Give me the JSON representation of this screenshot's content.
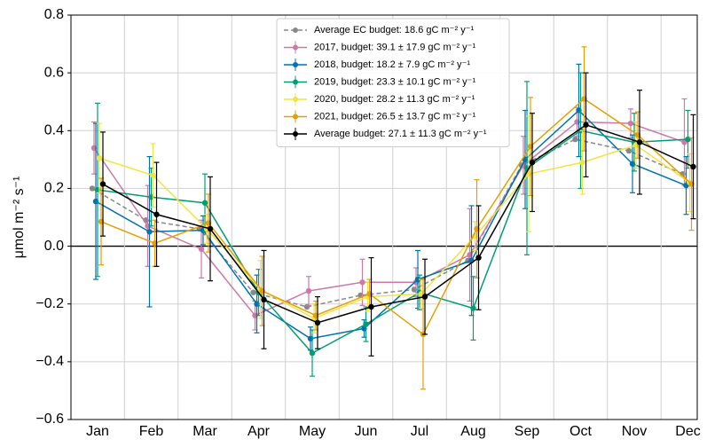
{
  "chart_data": {
    "type": "line",
    "ylabel": "μmol m⁻² s⁻¹",
    "categories": [
      "Jan",
      "Feb",
      "Mar",
      "Apr",
      "May",
      "Jun",
      "Jul",
      "Aug",
      "Sep",
      "Oct",
      "Nov",
      "Dec"
    ],
    "ylim": [
      -0.6,
      0.8
    ],
    "yticks": [
      {
        "value": -0.6,
        "label": "−0.6"
      },
      {
        "value": -0.4,
        "label": "−0.4"
      },
      {
        "value": -0.2,
        "label": "−0.2"
      },
      {
        "value": 0,
        "label": "0.0"
      },
      0.2,
      0.4,
      0.6,
      0.8
    ],
    "grid": true,
    "legend": "upper center",
    "series": [
      {
        "name": "Average EC budget: 18.6 gC m⁻² y⁻¹",
        "color": "#888888",
        "dashed": true,
        "values": [
          0.2,
          0.09,
          0.06,
          -0.16,
          -0.21,
          -0.17,
          -0.15,
          -0.05,
          0.28,
          0.37,
          0.33,
          0.25
        ]
      },
      {
        "name": "2017, budget: 39.1 ± 17.9 gC m⁻² y⁻¹",
        "color": "#cc79a7",
        "values": [
          0.34,
          0.07,
          -0.01,
          -0.24,
          -0.155,
          -0.125,
          -0.125,
          -0.03,
          0.28,
          0.43,
          0.425,
          0.36
        ],
        "errors": [
          0.09,
          0.14,
          0.1,
          0.05,
          0.05,
          0.08,
          0.05,
          0.16,
          0.1,
          0.05,
          0.05,
          0.15
        ]
      },
      {
        "name": "2018, budget: 18.2 ± 7.9 gC m⁻² y⁻¹",
        "color": "#0072b2",
        "values": [
          0.155,
          0.05,
          0.055,
          -0.2,
          -0.32,
          -0.285,
          -0.115,
          -0.05,
          0.3,
          0.47,
          0.285,
          0.21
        ],
        "errors": [
          0.27,
          0.26,
          0.05,
          0.1,
          0.04,
          0.03,
          0.1,
          0.19,
          0.17,
          0.16,
          0.1,
          0.1
        ]
      },
      {
        "name": "2019, budget: 23.3 ± 10.1 gC m⁻² y⁻¹",
        "color": "#009e73",
        "values": [
          0.195,
          0.17,
          0.15,
          -0.16,
          -0.37,
          -0.27,
          -0.16,
          -0.215,
          0.27,
          0.4,
          0.36,
          0.37
        ],
        "errors": [
          0.3,
          0.1,
          0.1,
          0.08,
          0.08,
          0.06,
          0.06,
          0.11,
          0.3,
          0.2,
          0.1,
          0.1
        ]
      },
      {
        "name": "2020, budget: 28.2 ± 11.3 gC m⁻² y⁻¹",
        "color": "#f0e442",
        "values": [
          0.305,
          0.245,
          0.06,
          -0.15,
          -0.25,
          -0.175,
          -0.165,
          0.035,
          0.25,
          0.29,
          0.35,
          0.22
        ],
        "errors": [
          0.12,
          0.11,
          0.05,
          0.1,
          0.05,
          0.05,
          0.05,
          0.05,
          0.2,
          0.11,
          0.08,
          0.1
        ]
      },
      {
        "name": "2021, budget: 26.5 ± 13.7 gC m⁻² y⁻¹",
        "color": "#e69f00",
        "values": [
          0.085,
          0.01,
          0.08,
          -0.155,
          -0.24,
          -0.165,
          -0.305,
          0.06,
          0.345,
          0.51,
          0.385,
          0.215
        ],
        "errors": [
          0.15,
          0.08,
          0.1,
          0.12,
          0.05,
          0.05,
          0.19,
          0.17,
          0.17,
          0.18,
          0.08,
          0.16
        ]
      },
      {
        "name": "Average budget: 27.1 ± 11.3 gC m⁻² y⁻¹",
        "color": "#000000",
        "values": [
          0.215,
          0.11,
          0.06,
          -0.185,
          -0.265,
          -0.21,
          -0.175,
          -0.04,
          0.29,
          0.42,
          0.36,
          0.275
        ],
        "errors": [
          0.18,
          0.18,
          0.18,
          0.17,
          0.09,
          0.17,
          0.13,
          0.18,
          0.17,
          0.18,
          0.18,
          0.18
        ]
      }
    ]
  }
}
